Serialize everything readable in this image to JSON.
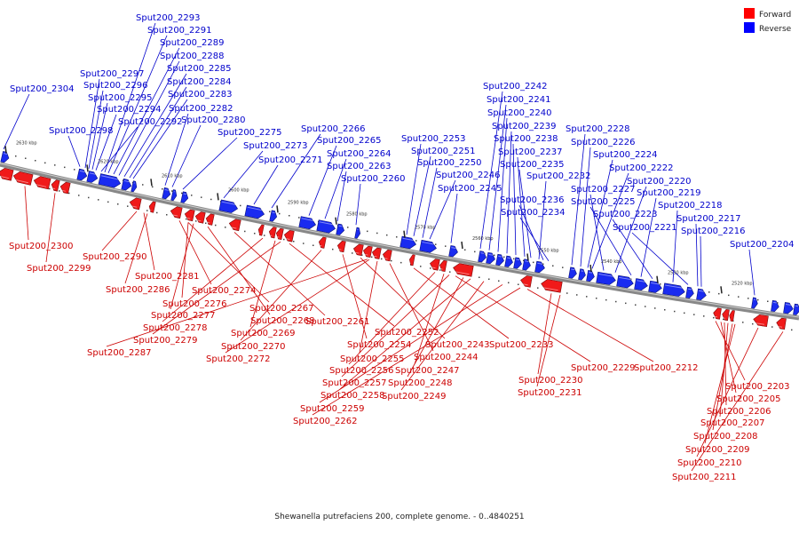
{
  "caption": "Shewanella putrefaciens 200, complete genome. - 0..4840251",
  "legend": [
    {
      "label": "Forward",
      "color": "#ff0000"
    },
    {
      "label": "Reverse",
      "color": "#0000ff"
    }
  ],
  "scale": {
    "unit": "kbp",
    "ticks": [
      2630,
      2620,
      2610,
      2600,
      2590,
      2580,
      2570,
      2560,
      2550,
      2540,
      2530,
      2520
    ]
  },
  "reverse_labels": [
    "Sput200_2293",
    "Sput200_2291",
    "Sput200_2289",
    "Sput200_2288",
    "Sput200_2297",
    "Sput200_2285",
    "Sput200_2296",
    "Sput200_2284",
    "Sput200_2304",
    "Sput200_2295",
    "Sput200_2283",
    "Sput200_2294",
    "Sput200_2282",
    "Sput200_2292",
    "Sput200_2280",
    "Sput200_2298",
    "Sput200_2275",
    "Sput200_2273",
    "Sput200_2271",
    "Sput200_2266",
    "Sput200_2265",
    "Sput200_2264",
    "Sput200_2263",
    "Sput200_2260",
    "Sput200_2253",
    "Sput200_2251",
    "Sput200_2250",
    "Sput200_2246",
    "Sput200_2245",
    "Sput200_2242",
    "Sput200_2241",
    "Sput200_2240",
    "Sput200_2239",
    "Sput200_2238",
    "Sput200_2237",
    "Sput200_2235",
    "Sput200_2232",
    "Sput200_2236",
    "Sput200_2234",
    "Sput200_2228",
    "Sput200_2226",
    "Sput200_2224",
    "Sput200_2222",
    "Sput200_2227",
    "Sput200_2220",
    "Sput200_2225",
    "Sput200_2219",
    "Sput200_2223",
    "Sput200_2218",
    "Sput200_2221",
    "Sput200_2217",
    "Sput200_2216",
    "Sput200_2204"
  ],
  "forward_labels": [
    "Sput200_2300",
    "Sput200_2290",
    "Sput200_2299",
    "Sput200_2281",
    "Sput200_2286",
    "Sput200_2274",
    "Sput200_2276",
    "Sput200_2267",
    "Sput200_2277",
    "Sput200_2268",
    "Sput200_2261",
    "Sput200_2278",
    "Sput200_2269",
    "Sput200_2279",
    "Sput200_2252",
    "Sput200_2270",
    "Sput200_2254",
    "Sput200_2243",
    "Sput200_2287",
    "Sput200_2272",
    "Sput200_2255",
    "Sput200_2244",
    "Sput200_2233",
    "Sput200_2256",
    "Sput200_2247",
    "Sput200_2229",
    "Sput200_2212",
    "Sput200_2257",
    "Sput200_2248",
    "Sput200_2230",
    "Sput200_2258",
    "Sput200_2249",
    "Sput200_2231",
    "Sput200_2259",
    "Sput200_2262",
    "Sput200_2203",
    "Sput200_2205",
    "Sput200_2206",
    "Sput200_2207",
    "Sput200_2208",
    "Sput200_2209",
    "Sput200_2210",
    "Sput200_2211"
  ]
}
